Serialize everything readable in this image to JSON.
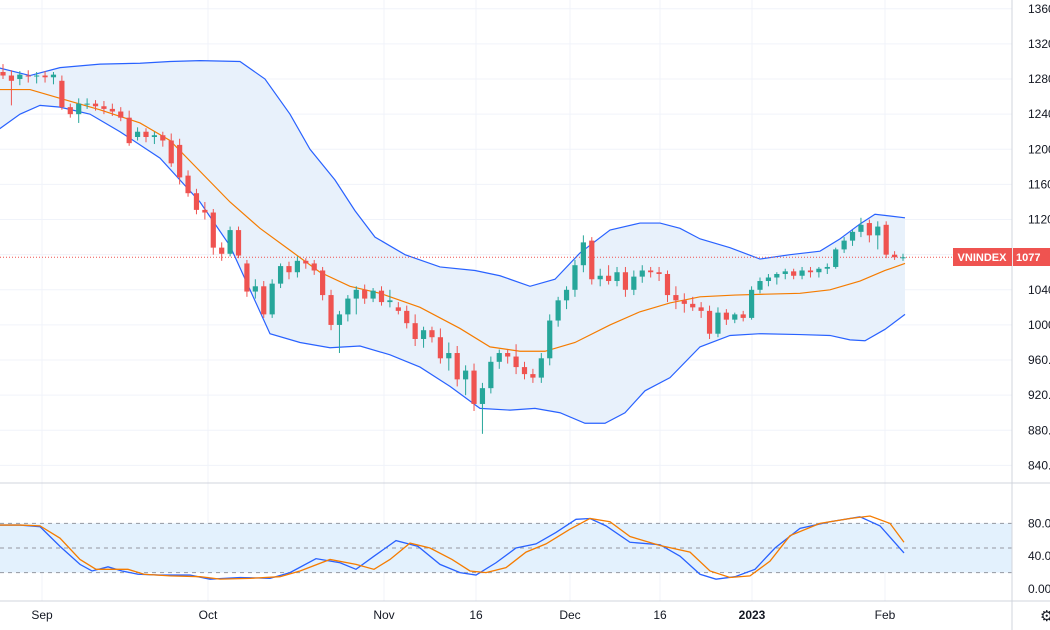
{
  "chart_data": [
    {
      "type": "candlestick",
      "symbol": "VNINDEX",
      "last_price_label": "1077",
      "ylim": [
        820,
        1370
      ],
      "y_ticks": [
        "840.",
        "880.",
        "920.",
        "960.",
        "1000",
        "1040",
        "1080",
        "1120",
        "1160",
        "1200",
        "1240",
        "1280",
        "1320",
        "1360"
      ],
      "x_ticks": [
        "Sep",
        "Oct",
        "Nov",
        "16",
        "Dec",
        "16",
        "2023",
        "Feb"
      ],
      "candles": [
        [
          1288,
          1297,
          1280,
          1284
        ],
        [
          1284,
          1290,
          1250,
          1278
        ],
        [
          1280,
          1289,
          1273,
          1285
        ],
        [
          1284,
          1290,
          1276,
          1283
        ],
        [
          1283,
          1288,
          1275,
          1284
        ],
        [
          1284,
          1289,
          1276,
          1282
        ],
        [
          1282,
          1288,
          1274,
          1285
        ],
        [
          1278,
          1284,
          1245,
          1248
        ],
        [
          1248,
          1252,
          1236,
          1240
        ],
        [
          1240,
          1258,
          1230,
          1252
        ],
        [
          1252,
          1258,
          1246,
          1252
        ],
        [
          1252,
          1256,
          1244,
          1249
        ],
        [
          1249,
          1255,
          1240,
          1246
        ],
        [
          1246,
          1252,
          1238,
          1243
        ],
        [
          1243,
          1248,
          1232,
          1236
        ],
        [
          1236,
          1244,
          1204,
          1207
        ],
        [
          1214,
          1225,
          1210,
          1220
        ],
        [
          1220,
          1224,
          1208,
          1214
        ],
        [
          1214,
          1220,
          1206,
          1216
        ],
        [
          1216,
          1220,
          1203,
          1210
        ],
        [
          1210,
          1218,
          1180,
          1184
        ],
        [
          1205,
          1212,
          1160,
          1168
        ],
        [
          1170,
          1176,
          1146,
          1150
        ],
        [
          1150,
          1155,
          1126,
          1131
        ],
        [
          1131,
          1140,
          1120,
          1128
        ],
        [
          1128,
          1132,
          1080,
          1088
        ],
        [
          1088,
          1094,
          1073,
          1081
        ],
        [
          1081,
          1112,
          1078,
          1108
        ],
        [
          1108,
          1112,
          1076,
          1079
        ],
        [
          1070,
          1074,
          1032,
          1038
        ],
        [
          1038,
          1052,
          1030,
          1044
        ],
        [
          1044,
          1050,
          1008,
          1012
        ],
        [
          1012,
          1052,
          1008,
          1047
        ],
        [
          1047,
          1070,
          1042,
          1067
        ],
        [
          1067,
          1072,
          1052,
          1060
        ],
        [
          1060,
          1078,
          1054,
          1073
        ],
        [
          1073,
          1076,
          1064,
          1070
        ],
        [
          1070,
          1074,
          1057,
          1062
        ],
        [
          1062,
          1066,
          1028,
          1034
        ],
        [
          1034,
          1040,
          994,
          1000
        ],
        [
          1000,
          1016,
          968,
          1012
        ],
        [
          1012,
          1034,
          1004,
          1030
        ],
        [
          1030,
          1044,
          1012,
          1040
        ],
        [
          1040,
          1046,
          1024,
          1030
        ],
        [
          1030,
          1042,
          1026,
          1039
        ],
        [
          1039,
          1044,
          1022,
          1026
        ],
        [
          1026,
          1040,
          1020,
          1028
        ],
        [
          1020,
          1026,
          1012,
          1016
        ],
        [
          1016,
          1022,
          996,
          1002
        ],
        [
          1002,
          1012,
          976,
          984
        ],
        [
          984,
          998,
          974,
          994
        ],
        [
          994,
          998,
          980,
          986
        ],
        [
          986,
          996,
          956,
          962
        ],
        [
          962,
          980,
          948,
          968
        ],
        [
          968,
          976,
          930,
          938
        ],
        [
          938,
          954,
          920,
          948
        ],
        [
          948,
          956,
          902,
          910
        ],
        [
          910,
          934,
          876,
          928
        ],
        [
          928,
          964,
          922,
          958
        ],
        [
          958,
          972,
          950,
          968
        ],
        [
          968,
          972,
          956,
          964
        ],
        [
          964,
          978,
          944,
          952
        ],
        [
          952,
          958,
          938,
          944
        ],
        [
          944,
          950,
          934,
          940
        ],
        [
          940,
          968,
          934,
          962
        ],
        [
          962,
          1012,
          954,
          1005
        ],
        [
          1005,
          1032,
          998,
          1028
        ],
        [
          1028,
          1044,
          1018,
          1040
        ],
        [
          1040,
          1074,
          1032,
          1068
        ],
        [
          1068,
          1102,
          1060,
          1094
        ],
        [
          1096,
          1100,
          1046,
          1052
        ],
        [
          1052,
          1064,
          1044,
          1056
        ],
        [
          1056,
          1068,
          1046,
          1050
        ],
        [
          1050,
          1066,
          1044,
          1060
        ],
        [
          1060,
          1066,
          1032,
          1040
        ],
        [
          1040,
          1062,
          1034,
          1055
        ],
        [
          1055,
          1068,
          1048,
          1062
        ],
        [
          1062,
          1066,
          1054,
          1060
        ],
        [
          1060,
          1066,
          1050,
          1058
        ],
        [
          1058,
          1062,
          1026,
          1034
        ],
        [
          1034,
          1044,
          1018,
          1028
        ],
        [
          1028,
          1036,
          1014,
          1024
        ],
        [
          1024,
          1032,
          1016,
          1020
        ],
        [
          1020,
          1026,
          1008,
          1016
        ],
        [
          1016,
          1022,
          984,
          990
        ],
        [
          990,
          1020,
          986,
          1014
        ],
        [
          1014,
          1018,
          1000,
          1006
        ],
        [
          1006,
          1014,
          1002,
          1012
        ],
        [
          1012,
          1016,
          1004,
          1008
        ],
        [
          1008,
          1044,
          1006,
          1040
        ],
        [
          1040,
          1054,
          1036,
          1050
        ],
        [
          1050,
          1058,
          1044,
          1054
        ],
        [
          1054,
          1060,
          1046,
          1058
        ],
        [
          1058,
          1064,
          1052,
          1061
        ],
        [
          1061,
          1064,
          1052,
          1056
        ],
        [
          1056,
          1066,
          1052,
          1062
        ],
        [
          1062,
          1066,
          1054,
          1060
        ],
        [
          1060,
          1066,
          1054,
          1064
        ],
        [
          1064,
          1070,
          1058,
          1066
        ],
        [
          1066,
          1088,
          1064,
          1086
        ],
        [
          1086,
          1100,
          1082,
          1096
        ],
        [
          1096,
          1108,
          1090,
          1106
        ],
        [
          1106,
          1122,
          1100,
          1114
        ],
        [
          1116,
          1120,
          1094,
          1102
        ],
        [
          1102,
          1118,
          1086,
          1112
        ],
        [
          1114,
          1118,
          1076,
          1080
        ],
        [
          1080,
          1084,
          1074,
          1077
        ],
        [
          1077,
          1081,
          1073,
          1077
        ]
      ],
      "bollinger": {
        "middle": [
          [
            -2,
            1268
          ],
          [
            30,
            1268
          ],
          [
            60,
            1258
          ],
          [
            100,
            1245
          ],
          [
            140,
            1230
          ],
          [
            170,
            1210
          ],
          [
            200,
            1175
          ],
          [
            230,
            1140
          ],
          [
            260,
            1110
          ],
          [
            290,
            1085
          ],
          [
            320,
            1060
          ],
          [
            350,
            1044
          ],
          [
            380,
            1036
          ],
          [
            420,
            1020
          ],
          [
            460,
            996
          ],
          [
            490,
            975
          ],
          [
            520,
            970
          ],
          [
            545,
            970
          ],
          [
            575,
            980
          ],
          [
            610,
            1000
          ],
          [
            640,
            1015
          ],
          [
            670,
            1025
          ],
          [
            700,
            1032
          ],
          [
            735,
            1034
          ],
          [
            765,
            1035
          ],
          [
            800,
            1036
          ],
          [
            830,
            1040
          ],
          [
            860,
            1050
          ],
          [
            885,
            1062
          ],
          [
            905,
            1070
          ]
        ],
        "upper": [
          [
            -2,
            1293
          ],
          [
            30,
            1284
          ],
          [
            60,
            1293
          ],
          [
            100,
            1297
          ],
          [
            140,
            1298
          ],
          [
            170,
            1300
          ],
          [
            200,
            1301
          ],
          [
            240,
            1300
          ],
          [
            265,
            1280
          ],
          [
            290,
            1240
          ],
          [
            310,
            1200
          ],
          [
            335,
            1165
          ],
          [
            355,
            1130
          ],
          [
            375,
            1100
          ],
          [
            405,
            1080
          ],
          [
            440,
            1066
          ],
          [
            475,
            1062
          ],
          [
            500,
            1056
          ],
          [
            530,
            1044
          ],
          [
            555,
            1052
          ],
          [
            580,
            1082
          ],
          [
            610,
            1108
          ],
          [
            640,
            1116
          ],
          [
            660,
            1116
          ],
          [
            680,
            1110
          ],
          [
            700,
            1098
          ],
          [
            730,
            1088
          ],
          [
            760,
            1075
          ],
          [
            790,
            1080
          ],
          [
            820,
            1084
          ],
          [
            840,
            1098
          ],
          [
            860,
            1115
          ],
          [
            875,
            1126
          ],
          [
            890,
            1124
          ],
          [
            905,
            1122
          ]
        ],
        "lower": [
          [
            -2,
            1222
          ],
          [
            20,
            1240
          ],
          [
            40,
            1250
          ],
          [
            60,
            1248
          ],
          [
            90,
            1240
          ],
          [
            120,
            1220
          ],
          [
            160,
            1190
          ],
          [
            200,
            1140
          ],
          [
            230,
            1090
          ],
          [
            250,
            1040
          ],
          [
            270,
            990
          ],
          [
            300,
            980
          ],
          [
            330,
            974
          ],
          [
            360,
            976
          ],
          [
            390,
            966
          ],
          [
            420,
            952
          ],
          [
            450,
            930
          ],
          [
            480,
            905
          ],
          [
            510,
            903
          ],
          [
            535,
            905
          ],
          [
            560,
            900
          ],
          [
            585,
            888
          ],
          [
            605,
            888
          ],
          [
            625,
            900
          ],
          [
            645,
            925
          ],
          [
            670,
            940
          ],
          [
            700,
            975
          ],
          [
            730,
            988
          ],
          [
            760,
            990
          ],
          [
            800,
            989
          ],
          [
            830,
            988
          ],
          [
            850,
            983
          ],
          [
            865,
            982
          ],
          [
            885,
            995
          ],
          [
            905,
            1012
          ]
        ]
      },
      "close_line": 1077
    },
    {
      "type": "line",
      "indicator": "stochastic",
      "ylim": [
        0,
        100
      ],
      "y_ticks": [
        "0.00",
        "40.0",
        "80.0"
      ],
      "levels": [
        20,
        50,
        80
      ],
      "series": [
        {
          "color": "#2962ff",
          "x": [
            -2,
            20,
            40,
            60,
            80,
            92,
            108,
            122,
            138,
            160,
            190,
            210,
            240,
            270,
            290,
            316,
            340,
            356,
            374,
            396,
            418,
            440,
            460,
            476,
            496,
            516,
            536,
            556,
            576,
            590,
            606,
            630,
            660,
            680,
            700,
            716,
            735,
            755,
            775,
            800,
            830,
            860,
            880,
            904
          ],
          "y": [
            78,
            78,
            76,
            52,
            30,
            22,
            27,
            22,
            18,
            17,
            17,
            12,
            14,
            13,
            20,
            37,
            32,
            24,
            40,
            59,
            52,
            30,
            20,
            17,
            32,
            50,
            55,
            69,
            85,
            86,
            77,
            57,
            54,
            40,
            18,
            12,
            15,
            24,
            50,
            74,
            82,
            88,
            77,
            44
          ]
        },
        {
          "color": "#f57c00",
          "x": [
            -2,
            20,
            40,
            60,
            80,
            96,
            112,
            128,
            144,
            170,
            200,
            220,
            250,
            280,
            300,
            330,
            356,
            374,
            390,
            410,
            430,
            452,
            470,
            486,
            506,
            526,
            546,
            570,
            590,
            610,
            630,
            660,
            690,
            710,
            730,
            750,
            770,
            790,
            820,
            850,
            870,
            890,
            904
          ],
          "y": [
            78,
            78,
            77,
            62,
            36,
            24,
            24,
            24,
            18,
            16,
            15,
            12,
            13,
            15,
            22,
            36,
            30,
            24,
            36,
            56,
            50,
            36,
            22,
            20,
            26,
            45,
            55,
            73,
            86,
            82,
            64,
            53,
            45,
            22,
            14,
            16,
            34,
            65,
            80,
            86,
            89,
            80,
            57
          ]
        }
      ]
    }
  ],
  "colors": {
    "up": "#26a69a",
    "down": "#ef5350",
    "bollinger_band": "#2962ff",
    "basis": "#f57c00",
    "fill": "#e8f1fb",
    "osc_fill": "#e3f1fd"
  },
  "icons": {
    "settings": "gear-icon"
  }
}
